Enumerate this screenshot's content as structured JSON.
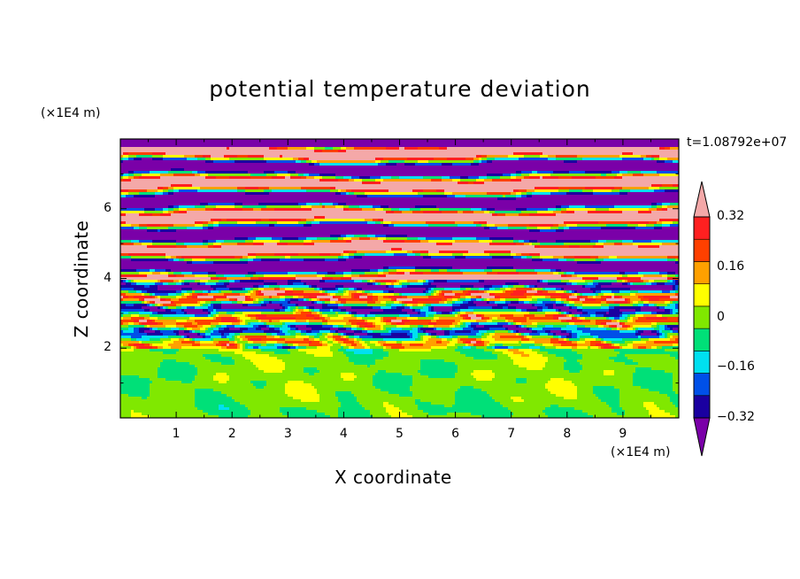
{
  "chart_data": {
    "type": "heatmap",
    "title": "potential temperature deviation",
    "xlabel": "X coordinate",
    "ylabel": "Z coordinate",
    "x_unit": "(×1E4 m)",
    "y_unit": "(×1E4 m)",
    "time_label": "t=1.08792e+07",
    "xlim": [
      0,
      10
    ],
    "ylim": [
      0,
      8
    ],
    "x_ticks": [
      "1",
      "2",
      "3",
      "4",
      "5",
      "6",
      "7",
      "8",
      "9"
    ],
    "y_ticks": [
      "2",
      "4",
      "6"
    ],
    "colorbar": {
      "tick_labels": [
        "0.32",
        "0.16",
        "0",
        "−0.16",
        "−0.32"
      ],
      "tick_values": [
        0.32,
        0.16,
        0,
        -0.16,
        -0.32
      ],
      "levels": [
        -0.4,
        -0.32,
        -0.24,
        -0.16,
        -0.08,
        0,
        0.08,
        0.16,
        0.24,
        0.32,
        0.4
      ],
      "colors": [
        "#7a00a8",
        "#1a00a0",
        "#0050e8",
        "#00e0f0",
        "#00e078",
        "#80e800",
        "#ffff00",
        "#ffa000",
        "#ff4000",
        "#ff2020",
        "#f4a8a8"
      ],
      "extend": "both"
    },
    "regions": [
      {
        "z_range": [
          0,
          2
        ],
        "pattern": "near-zero values, mostly 0 to +0.08 with patches of −0.08 to 0"
      },
      {
        "z_range": [
          2,
          4
        ],
        "pattern": "turbulent mixed layer spanning full color range"
      },
      {
        "z_range": [
          4,
          8
        ],
        "pattern": "alternating horizontal layers of ≤ −0.4 and ≥ +0.4"
      }
    ]
  }
}
